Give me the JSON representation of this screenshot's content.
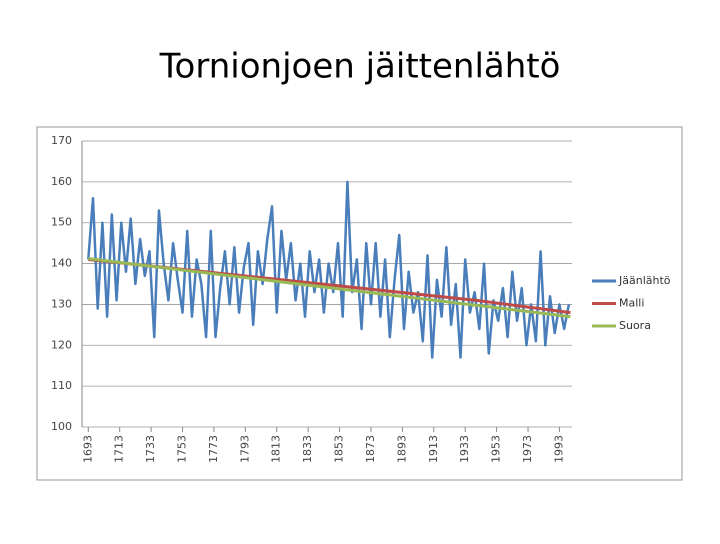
{
  "chart_data": {
    "type": "line",
    "title": "Tornionjoen jäittenlähtö",
    "xlim": [
      1689,
      2001
    ],
    "ylim": [
      100,
      170
    ],
    "yticks": [
      100,
      110,
      120,
      130,
      140,
      150,
      160,
      170
    ],
    "xticks": [
      {
        "value": 1693,
        "label": "1693"
      },
      {
        "value": 1713,
        "label": "1713"
      },
      {
        "value": 1733,
        "label": "1733"
      },
      {
        "value": 1753,
        "label": "1753"
      },
      {
        "value": 1773,
        "label": "1773"
      },
      {
        "value": 1793,
        "label": "1793"
      },
      {
        "value": 1813,
        "label": "1813"
      },
      {
        "value": 1833,
        "label": "1833"
      },
      {
        "value": 1853,
        "label": "1853"
      },
      {
        "value": 1873,
        "label": "1873"
      },
      {
        "value": 1893,
        "label": "1893"
      },
      {
        "value": 1913,
        "label": "1913"
      },
      {
        "value": 1933,
        "label": "1933"
      },
      {
        "value": 1953,
        "label": "1953"
      },
      {
        "value": 1973,
        "label": "1973"
      },
      {
        "value": 1993,
        "label": "1993"
      }
    ],
    "grid": true,
    "legend": "right",
    "series": [
      {
        "name": "Jäänlähtö",
        "color": "#4a7ebb",
        "x": [
          1693,
          1696,
          1699,
          1702,
          1705,
          1708,
          1711,
          1714,
          1717,
          1720,
          1723,
          1726,
          1729,
          1732,
          1735,
          1738,
          1741,
          1744,
          1747,
          1750,
          1753,
          1756,
          1759,
          1762,
          1765,
          1768,
          1771,
          1774,
          1777,
          1780,
          1783,
          1786,
          1789,
          1792,
          1795,
          1798,
          1801,
          1804,
          1807,
          1810,
          1813,
          1816,
          1819,
          1822,
          1825,
          1828,
          1831,
          1834,
          1837,
          1840,
          1843,
          1846,
          1849,
          1852,
          1855,
          1858,
          1861,
          1864,
          1867,
          1870,
          1873,
          1876,
          1879,
          1882,
          1885,
          1888,
          1891,
          1894,
          1897,
          1900,
          1903,
          1906,
          1909,
          1912,
          1915,
          1918,
          1921,
          1924,
          1927,
          1930,
          1933,
          1936,
          1939,
          1942,
          1945,
          1948,
          1951,
          1954,
          1957,
          1960,
          1963,
          1966,
          1969,
          1972,
          1975,
          1978,
          1981,
          1984,
          1987,
          1990,
          1993,
          1996,
          1999
        ],
        "values": [
          141,
          156,
          129,
          150,
          127,
          152,
          131,
          150,
          138,
          151,
          135,
          146,
          137,
          143,
          122,
          153,
          140,
          131,
          145,
          136,
          128,
          148,
          127,
          141,
          135,
          122,
          148,
          122,
          134,
          143,
          130,
          144,
          128,
          139,
          145,
          125,
          143,
          135,
          146,
          154,
          128,
          148,
          136,
          145,
          131,
          140,
          127,
          143,
          133,
          141,
          128,
          140,
          133,
          145,
          127,
          160,
          133,
          141,
          124,
          145,
          130,
          145,
          127,
          141,
          122,
          136,
          147,
          124,
          138,
          128,
          133,
          121,
          142,
          117,
          136,
          127,
          144,
          125,
          135,
          117,
          141,
          128,
          133,
          124,
          140,
          118,
          131,
          126,
          134,
          122,
          138,
          126,
          134,
          120,
          130,
          121,
          143,
          120,
          132,
          123,
          130,
          124,
          130
        ]
      },
      {
        "name": "Malli",
        "color": "#be4b48",
        "x": [
          1693,
          1940,
          1960,
          1980,
          2000
        ],
        "values": [
          141,
          131,
          130,
          129,
          128
        ]
      },
      {
        "name": "Suora",
        "color": "#98b954",
        "x": [
          1693,
          2000
        ],
        "values": [
          141.2,
          127
        ]
      }
    ]
  }
}
